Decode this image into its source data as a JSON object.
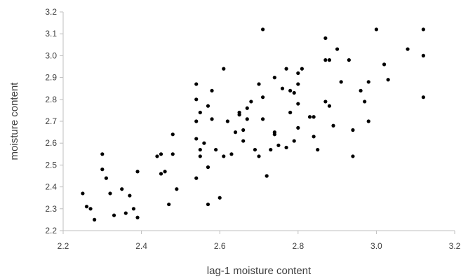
{
  "chart_data": {
    "type": "scatter",
    "title": "",
    "xlabel": "lag-1 moisture content",
    "ylabel": "moisture content",
    "xlim": [
      2.2,
      3.2
    ],
    "ylim": [
      2.2,
      3.2
    ],
    "grid": false,
    "legend": "none",
    "x_tick_labels": [
      "2.2",
      "2.4",
      "2.6",
      "2.8",
      "3.0",
      "3.2"
    ],
    "y_tick_labels": [
      "2.2",
      "2.3",
      "2.4",
      "2.5",
      "2.6",
      "2.7",
      "2.8",
      "2.9",
      "3.0",
      "3.1",
      "3.2"
    ],
    "point_color": "#000000",
    "axis_color": "#bfbfbf",
    "series": [
      {
        "points": [
          [
            2.25,
            2.37
          ],
          [
            2.26,
            2.31
          ],
          [
            2.27,
            2.3
          ],
          [
            2.28,
            2.25
          ],
          [
            2.3,
            2.55
          ],
          [
            2.3,
            2.48
          ],
          [
            2.31,
            2.44
          ],
          [
            2.32,
            2.37
          ],
          [
            2.33,
            2.27
          ],
          [
            2.35,
            2.39
          ],
          [
            2.36,
            2.28
          ],
          [
            2.37,
            2.36
          ],
          [
            2.38,
            2.3
          ],
          [
            2.39,
            2.26
          ],
          [
            2.39,
            2.47
          ],
          [
            2.44,
            2.54
          ],
          [
            2.45,
            2.55
          ],
          [
            2.45,
            2.46
          ],
          [
            2.46,
            2.47
          ],
          [
            2.47,
            2.32
          ],
          [
            2.48,
            2.64
          ],
          [
            2.48,
            2.55
          ],
          [
            2.49,
            2.39
          ],
          [
            2.54,
            2.87
          ],
          [
            2.54,
            2.8
          ],
          [
            2.54,
            2.7
          ],
          [
            2.54,
            2.62
          ],
          [
            2.54,
            2.44
          ],
          [
            2.55,
            2.74
          ],
          [
            2.55,
            2.57
          ],
          [
            2.55,
            2.54
          ],
          [
            2.56,
            2.6
          ],
          [
            2.57,
            2.77
          ],
          [
            2.57,
            2.49
          ],
          [
            2.57,
            2.32
          ],
          [
            2.58,
            2.84
          ],
          [
            2.58,
            2.71
          ],
          [
            2.59,
            2.57
          ],
          [
            2.6,
            2.35
          ],
          [
            2.61,
            2.94
          ],
          [
            2.61,
            2.54
          ],
          [
            2.62,
            2.7
          ],
          [
            2.63,
            2.55
          ],
          [
            2.64,
            2.65
          ],
          [
            2.65,
            2.74
          ],
          [
            2.65,
            2.73
          ],
          [
            2.66,
            2.66
          ],
          [
            2.66,
            2.61
          ],
          [
            2.67,
            2.76
          ],
          [
            2.67,
            2.71
          ],
          [
            2.68,
            2.79
          ],
          [
            2.69,
            2.57
          ],
          [
            2.7,
            2.87
          ],
          [
            2.7,
            2.54
          ],
          [
            2.71,
            3.12
          ],
          [
            2.71,
            2.81
          ],
          [
            2.71,
            2.71
          ],
          [
            2.72,
            2.45
          ],
          [
            2.73,
            2.57
          ],
          [
            2.74,
            2.9
          ],
          [
            2.74,
            2.65
          ],
          [
            2.74,
            2.64
          ],
          [
            2.75,
            2.59
          ],
          [
            2.76,
            2.85
          ],
          [
            2.77,
            2.94
          ],
          [
            2.77,
            2.58
          ],
          [
            2.78,
            2.84
          ],
          [
            2.78,
            2.74
          ],
          [
            2.79,
            2.83
          ],
          [
            2.79,
            2.61
          ],
          [
            2.8,
            2.87
          ],
          [
            2.8,
            2.78
          ],
          [
            2.8,
            2.67
          ],
          [
            2.8,
            2.92
          ],
          [
            2.81,
            2.94
          ],
          [
            2.83,
            2.72
          ],
          [
            2.84,
            2.63
          ],
          [
            2.84,
            2.72
          ],
          [
            2.85,
            2.57
          ],
          [
            2.87,
            3.08
          ],
          [
            2.87,
            2.98
          ],
          [
            2.87,
            2.79
          ],
          [
            2.88,
            2.77
          ],
          [
            2.88,
            2.98
          ],
          [
            2.89,
            2.68
          ],
          [
            2.9,
            3.03
          ],
          [
            2.91,
            2.88
          ],
          [
            2.93,
            2.98
          ],
          [
            2.94,
            2.66
          ],
          [
            2.94,
            2.54
          ],
          [
            2.96,
            2.84
          ],
          [
            2.97,
            2.79
          ],
          [
            2.98,
            2.88
          ],
          [
            2.98,
            2.7
          ],
          [
            3.0,
            3.12
          ],
          [
            3.02,
            2.96
          ],
          [
            3.03,
            2.89
          ],
          [
            3.08,
            3.03
          ],
          [
            3.12,
            3.12
          ],
          [
            3.12,
            3.0
          ],
          [
            3.12,
            2.81
          ]
        ]
      }
    ]
  }
}
